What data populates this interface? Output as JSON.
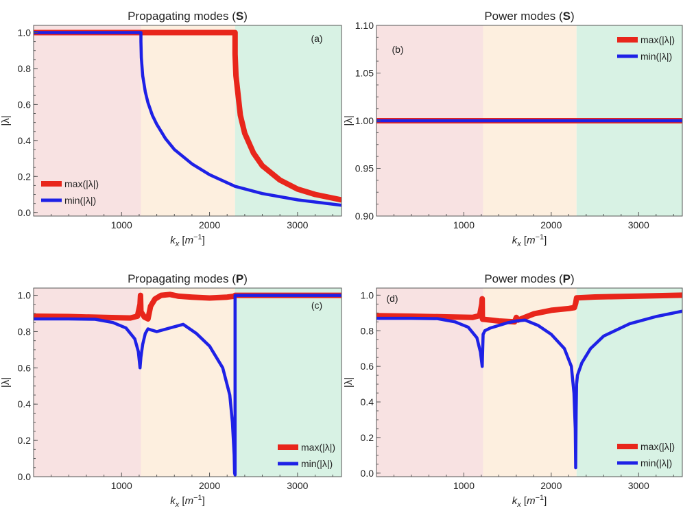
{
  "colors": {
    "max_series": "#e8261b",
    "min_series": "#1e21e6",
    "region_1": "#f8e2e2",
    "region_2": "#fdefdf",
    "region_3": "#d8f2e4",
    "axis": "#555555"
  },
  "chart_data": [
    {
      "id": "a",
      "type": "line",
      "title_main": "Propagating modes ",
      "title_bold": "S",
      "title_open": "(",
      "title_close": ")",
      "panel_label": "(a)",
      "xlabel_var": "k",
      "xlabel_sub": "x",
      "xlabel_unit_open": " [",
      "xlabel_unit": "m",
      "xlabel_exp": "−1",
      "xlabel_unit_close": "]",
      "ylabel": "|λ|",
      "xlim": [
        0,
        3500
      ],
      "ylim": [
        -0.02,
        1.04
      ],
      "xticks": [
        1000,
        2000,
        3000
      ],
      "xticklabels": [
        "1000",
        "2000",
        "3000"
      ],
      "yticks": [
        0.0,
        0.2,
        0.4,
        0.6,
        0.8,
        1.0
      ],
      "yticklabels": [
        "0.0",
        "0.2",
        "0.4",
        "0.6",
        "0.8",
        "1.0"
      ],
      "regions": [
        0,
        1220,
        2290,
        3500
      ],
      "legend_position": "bottom-left",
      "series": [
        {
          "name": "max(|λ|)",
          "color": "max",
          "width": "thick",
          "x": [
            0,
            2290,
            2290,
            2300,
            2350,
            2400,
            2500,
            2600,
            2800,
            3000,
            3200,
            3500
          ],
          "y": [
            1.0,
            1.0,
            0.88,
            0.76,
            0.54,
            0.44,
            0.33,
            0.26,
            0.18,
            0.13,
            0.1,
            0.07
          ]
        },
        {
          "name": "min(|λ|)",
          "color": "min",
          "width": "normal",
          "x": [
            0,
            1220,
            1220,
            1225,
            1240,
            1270,
            1300,
            1350,
            1400,
            1500,
            1600,
            1800,
            2000,
            2290,
            2600,
            3000,
            3500
          ],
          "y": [
            1.0,
            1.0,
            0.95,
            0.86,
            0.76,
            0.67,
            0.61,
            0.54,
            0.49,
            0.41,
            0.35,
            0.27,
            0.21,
            0.145,
            0.105,
            0.07,
            0.04
          ]
        }
      ]
    },
    {
      "id": "b",
      "type": "line",
      "title_main": "Power modes ",
      "title_bold": "S",
      "title_open": "(",
      "title_close": ")",
      "panel_label": "(b)",
      "xlabel_var": "k",
      "xlabel_sub": "x",
      "xlabel_unit_open": " [",
      "xlabel_unit": "m",
      "xlabel_exp": "−1",
      "xlabel_unit_close": "]",
      "ylabel": "|λ|",
      "xlim": [
        0,
        3500
      ],
      "ylim": [
        0.9,
        1.1
      ],
      "xticks": [
        1000,
        2000,
        3000
      ],
      "xticklabels": [
        "1000",
        "2000",
        "3000"
      ],
      "yticks": [
        0.9,
        0.95,
        1.0,
        1.05,
        1.1
      ],
      "yticklabels": [
        "0.90",
        "0.95",
        "1.00",
        "1.05",
        "1.10"
      ],
      "regions": [
        0,
        1220,
        2290,
        3500
      ],
      "legend_position": "top-right",
      "series": [
        {
          "name": "max(|λ|)",
          "color": "max",
          "width": "thick",
          "x": [
            0,
            3500
          ],
          "y": [
            1.0,
            1.0
          ]
        },
        {
          "name": "min(|λ|)",
          "color": "min",
          "width": "normal",
          "x": [
            0,
            3500
          ],
          "y": [
            1.0,
            1.0
          ]
        }
      ]
    },
    {
      "id": "c",
      "type": "line",
      "title_main": "Propagating modes ",
      "title_bold": "P",
      "title_open": "(",
      "title_close": ")",
      "panel_label": "(c)",
      "xlabel_var": "k",
      "xlabel_sub": "x",
      "xlabel_unit_open": " [",
      "xlabel_unit": "m",
      "xlabel_exp": "−1",
      "xlabel_unit_close": "]",
      "ylabel": "|λ|",
      "xlim": [
        0,
        3500
      ],
      "ylim": [
        0.0,
        1.04
      ],
      "xticks": [
        1000,
        2000,
        3000
      ],
      "xticklabels": [
        "1000",
        "2000",
        "3000"
      ],
      "yticks": [
        0.0,
        0.2,
        0.4,
        0.6,
        0.8,
        1.0
      ],
      "yticklabels": [
        "0.0",
        "0.2",
        "0.4",
        "0.6",
        "0.8",
        "1.0"
      ],
      "regions": [
        0,
        1220,
        2290,
        3500
      ],
      "legend_position": "bottom-right",
      "series": [
        {
          "name": "max(|λ|)",
          "color": "max",
          "width": "thick",
          "x": [
            0,
            400,
            800,
            1100,
            1180,
            1210,
            1215,
            1220,
            1260,
            1300,
            1330,
            1380,
            1450,
            1550,
            1650,
            1800,
            2000,
            2200,
            2280,
            2290,
            2500,
            3000,
            3500
          ],
          "y": [
            0.885,
            0.883,
            0.878,
            0.875,
            0.885,
            0.95,
            1.0,
            0.91,
            0.88,
            0.87,
            0.94,
            0.98,
            1.0,
            1.005,
            0.995,
            0.99,
            0.985,
            0.99,
            0.995,
            1.0,
            1.0,
            1.0,
            1.0
          ]
        },
        {
          "name": "min(|λ|)",
          "color": "min",
          "width": "normal",
          "x": [
            0,
            400,
            700,
            900,
            1050,
            1150,
            1190,
            1210,
            1220,
            1240,
            1270,
            1300,
            1330,
            1400,
            1550,
            1700,
            1850,
            2000,
            2150,
            2230,
            2260,
            2280,
            2285,
            2290,
            2290,
            3500
          ],
          "y": [
            0.87,
            0.87,
            0.868,
            0.85,
            0.82,
            0.76,
            0.69,
            0.6,
            0.66,
            0.73,
            0.79,
            0.815,
            0.81,
            0.8,
            0.82,
            0.84,
            0.79,
            0.72,
            0.6,
            0.45,
            0.3,
            0.12,
            0.02,
            0.01,
            1.0,
            1.0
          ]
        }
      ]
    },
    {
      "id": "d",
      "type": "line",
      "title_main": "Power modes ",
      "title_bold": "P",
      "title_open": "(",
      "title_close": ")",
      "panel_label": "(d)",
      "xlabel_var": "k",
      "xlabel_sub": "x",
      "xlabel_unit_open": " [",
      "xlabel_unit": "m",
      "xlabel_exp": "−1",
      "xlabel_unit_close": "]",
      "ylabel": "|λ|",
      "xlim": [
        0,
        3500
      ],
      "ylim": [
        -0.02,
        1.04
      ],
      "xticks": [
        1000,
        2000,
        3000
      ],
      "xticklabels": [
        "1000",
        "2000",
        "3000"
      ],
      "yticks": [
        0.0,
        0.2,
        0.4,
        0.6,
        0.8,
        1.0
      ],
      "yticklabels": [
        "0.0",
        "0.2",
        "0.4",
        "0.6",
        "0.8",
        "1.0"
      ],
      "regions": [
        0,
        1220,
        2290,
        3500
      ],
      "legend_position": "bottom-right",
      "series": [
        {
          "name": "max(|λ|)",
          "color": "max",
          "width": "thick",
          "x": [
            0,
            400,
            800,
            1100,
            1180,
            1205,
            1210,
            1212,
            1215,
            1400,
            1580,
            1600,
            1620,
            1800,
            2000,
            2200,
            2265,
            2280,
            2290,
            2300,
            2500,
            3000,
            3500
          ],
          "y": [
            0.885,
            0.882,
            0.878,
            0.875,
            0.885,
            0.95,
            0.98,
            0.87,
            0.865,
            0.855,
            0.85,
            0.875,
            0.86,
            0.895,
            0.915,
            0.925,
            0.93,
            0.955,
            0.985,
            0.985,
            0.99,
            0.995,
            1.0
          ]
        },
        {
          "name": "min(|λ|)",
          "color": "min",
          "width": "normal",
          "x": [
            0,
            400,
            700,
            900,
            1050,
            1150,
            1190,
            1210,
            1220,
            1240,
            1300,
            1400,
            1500,
            1600,
            1700,
            1850,
            2000,
            2150,
            2230,
            2260,
            2275,
            2280,
            2285,
            2290,
            2300,
            2350,
            2450,
            2600,
            2900,
            3200,
            3500
          ],
          "y": [
            0.87,
            0.87,
            0.868,
            0.85,
            0.82,
            0.76,
            0.68,
            0.6,
            0.78,
            0.8,
            0.815,
            0.83,
            0.845,
            0.855,
            0.86,
            0.83,
            0.78,
            0.7,
            0.6,
            0.45,
            0.25,
            0.03,
            0.35,
            0.5,
            0.55,
            0.62,
            0.7,
            0.77,
            0.84,
            0.88,
            0.91
          ]
        }
      ]
    }
  ]
}
